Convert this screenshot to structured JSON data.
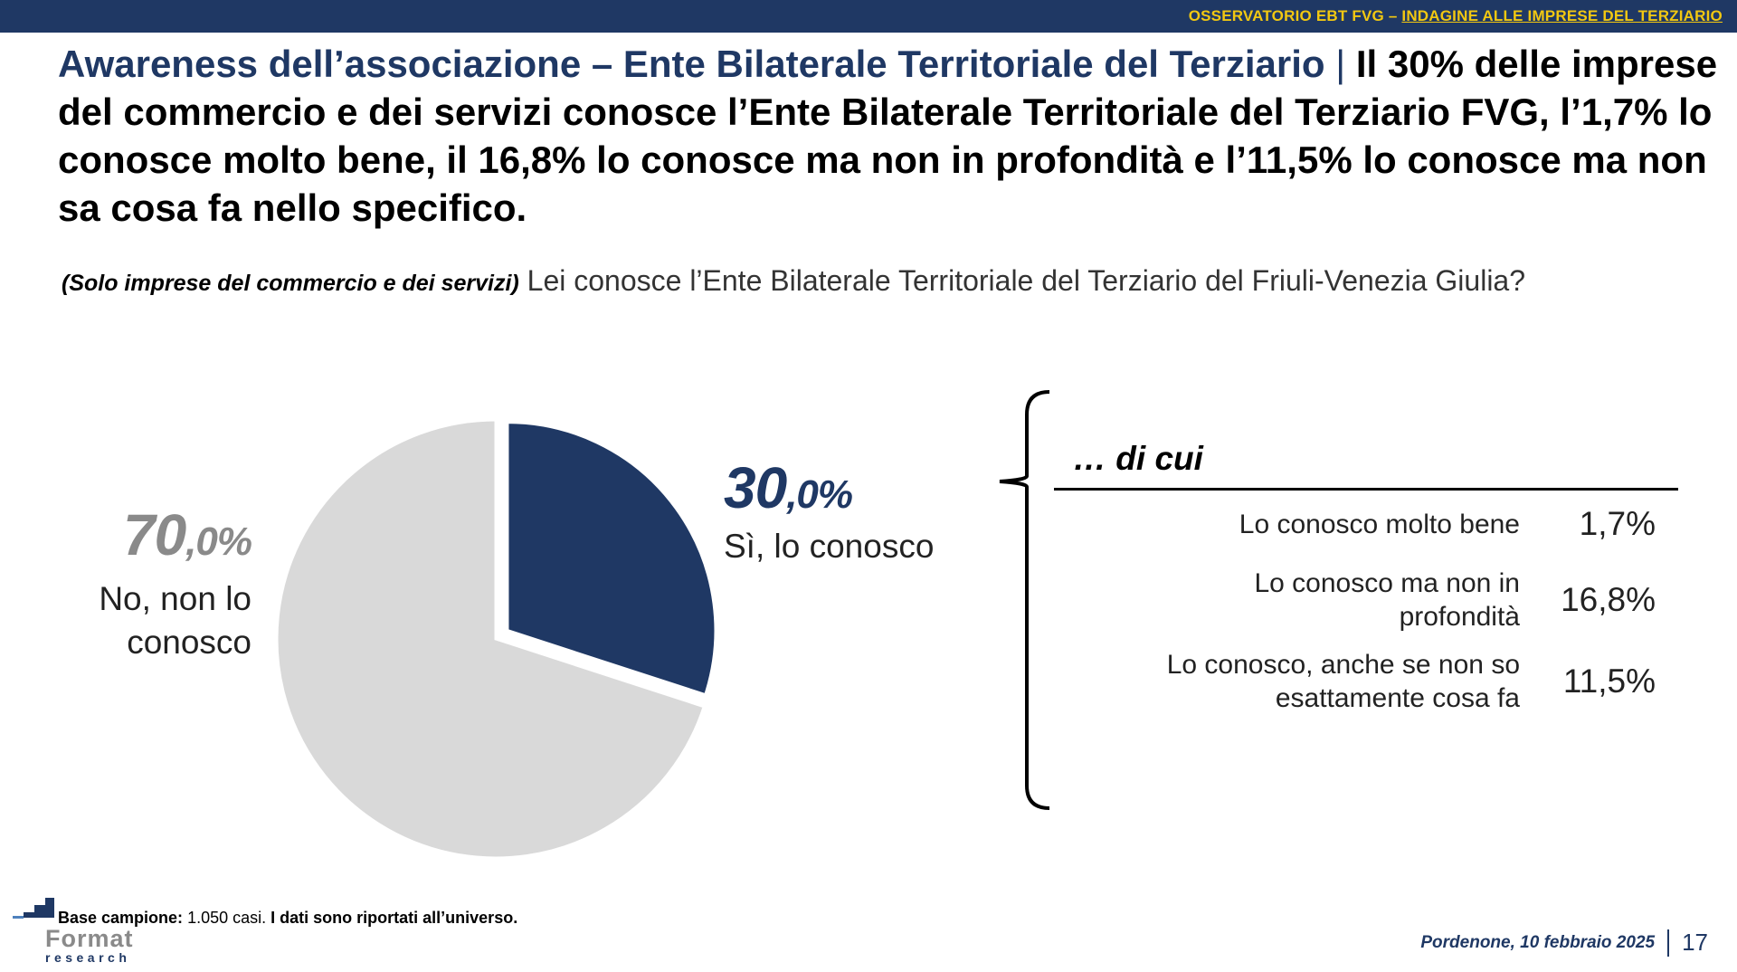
{
  "header": {
    "prefix": "OSSERVATORIO EBT FVG – ",
    "link": "INDAGINE ALLE IMPRESE DEL TERZIARIO",
    "bar_color": "#1f3864",
    "text_color": "#f2c811"
  },
  "headline": {
    "accent": "Awareness dell’associazione – Ente Bilaterale Territoriale del Terziario",
    "separator": "|",
    "rest": "Il 30% delle imprese del commercio e dei servizi conosce l’Ente Bilaterale Territoriale del Terziario FVG, l’1,7% lo conosce molto bene, il 16,8% lo conosce ma non in profondità e l’11,5% lo conosce ma non sa cosa fa nello specifico."
  },
  "question": {
    "scope": "(Solo imprese del commercio e dei servizi)",
    "text": "Lei conosce l’Ente Bilaterale Territoriale del Terziario del Friuli-Venezia Giulia?"
  },
  "chart_data": {
    "type": "pie",
    "slices": [
      {
        "label": "Sì, lo conosco",
        "value": 30.0,
        "color": "#1f3864",
        "exploded": true
      },
      {
        "label": "No, non lo conosco",
        "value": 70.0,
        "color": "#d9d9d9",
        "exploded": false
      }
    ],
    "labels": {
      "yes_int": "30",
      "yes_dec": ",0%",
      "yes_text": "Sì, lo conosco",
      "no_int": "70",
      "no_dec": ",0%",
      "no_line1": "No, non lo",
      "no_line2": "conosco"
    },
    "breakdown": {
      "title": "… di cui",
      "rows": [
        {
          "label_lines": [
            "Lo conosco molto bene"
          ],
          "value": 1.7,
          "display": "1,7%"
        },
        {
          "label_lines": [
            "Lo conosco ma non in",
            "profondità"
          ],
          "value": 16.8,
          "display": "16,8%"
        },
        {
          "label_lines": [
            "Lo conosco, anche se non so",
            "esattamente cosa fa"
          ],
          "value": 11.5,
          "display": "11,5%"
        }
      ]
    }
  },
  "footer": {
    "base_label": "Base campione:",
    "base_value": "1.050 casi.",
    "base_note": "I dati sono riportati all’universo.",
    "logo_top": "Format",
    "logo_bottom": "research",
    "date": "Pordenone, 10 febbraio 2025",
    "page": "17"
  }
}
